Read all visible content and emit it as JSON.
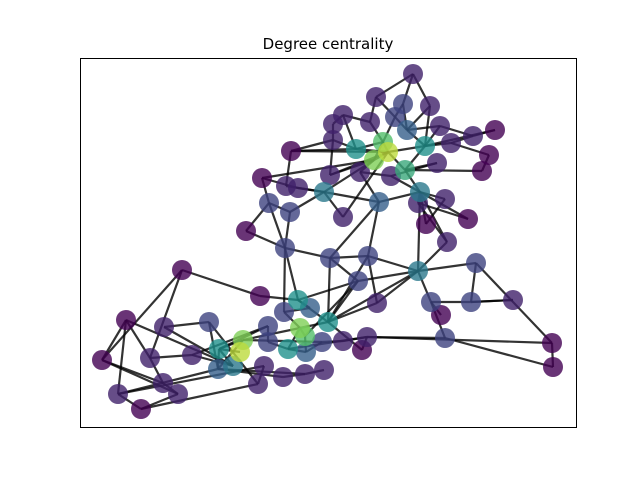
{
  "figure": {
    "title": "Degree centrality"
  },
  "colormap": {
    "name": "viridis",
    "stops": [
      "#440154",
      "#3b528b",
      "#21918c",
      "#5ec962",
      "#fde725"
    ]
  }
}
